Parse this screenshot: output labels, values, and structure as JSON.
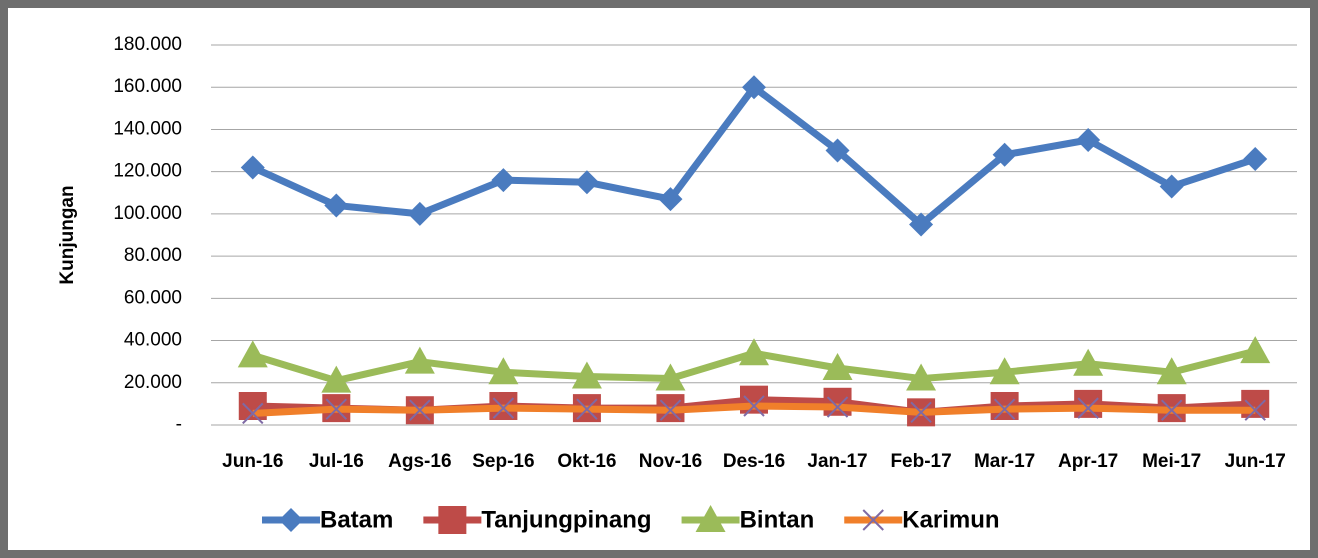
{
  "chart_data": {
    "type": "line",
    "y_label": "Kunjungan",
    "categories": [
      "Jun-16",
      "Jul-16",
      "Ags-16",
      "Sep-16",
      "Okt-16",
      "Nov-16",
      "Des-16",
      "Jan-17",
      "Feb-17",
      "Mar-17",
      "Apr-17",
      "Mei-17",
      "Jun-17"
    ],
    "series": [
      {
        "name": "Batam",
        "color": "#4a7bbf",
        "marker": "diamond",
        "marker_color": "#4a7bbf",
        "values": [
          122000,
          104000,
          100000,
          116000,
          115000,
          107000,
          160000,
          130000,
          95000,
          128000,
          135000,
          113000,
          126000
        ]
      },
      {
        "name": "Tanjungpinang",
        "color": "#be4b48",
        "marker": "square",
        "marker_color": "#be4b48",
        "values": [
          9000,
          8000,
          7000,
          9000,
          8000,
          8000,
          12000,
          11000,
          6000,
          9000,
          10000,
          8000,
          10000
        ]
      },
      {
        "name": "Bintan",
        "color": "#9bbb59",
        "marker": "triangle",
        "marker_color": "#9bbb59",
        "values": [
          33000,
          21000,
          30000,
          25000,
          23000,
          22000,
          34000,
          27000,
          22000,
          25000,
          29000,
          25000,
          35000
        ]
      },
      {
        "name": "Karimun",
        "color": "#f07f2a",
        "marker": "x",
        "marker_color": "#7f6aa5",
        "values": [
          5500,
          7500,
          7000,
          8000,
          7500,
          7000,
          9000,
          8500,
          6000,
          7500,
          8000,
          7000,
          7000
        ]
      }
    ],
    "ylim": [
      0,
      180000
    ],
    "yticks": [
      {
        "value": 0,
        "label": "-"
      },
      {
        "value": 20000,
        "label": "20.000"
      },
      {
        "value": 40000,
        "label": "40.000"
      },
      {
        "value": 60000,
        "label": "60.000"
      },
      {
        "value": 80000,
        "label": "80.000"
      },
      {
        "value": 100000,
        "label": "100.000"
      },
      {
        "value": 120000,
        "label": "120.000"
      },
      {
        "value": 140000,
        "label": "140.000"
      },
      {
        "value": 160000,
        "label": "160.000"
      },
      {
        "value": 180000,
        "label": "180.000"
      }
    ],
    "grid": true,
    "legend": "bottom"
  }
}
